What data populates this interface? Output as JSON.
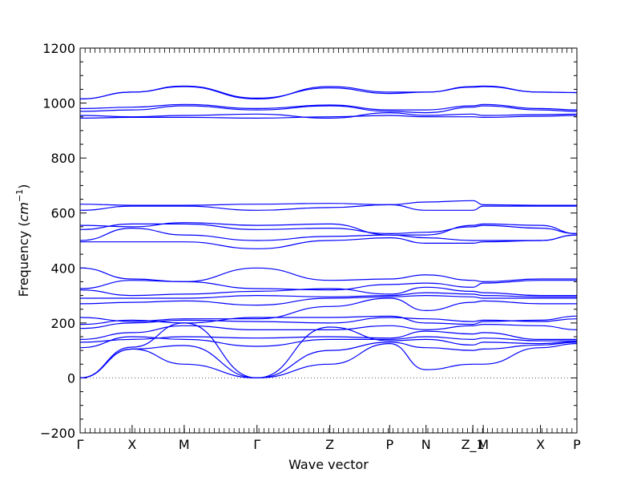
{
  "chart_data": {
    "type": "line",
    "xlabel": "Wave vector",
    "ylabel_text": "Frequency (",
    "ylabel_math": "cm",
    "ylabel_exp": "−1",
    "ylabel_close": ")",
    "ylim": [
      -200,
      1200
    ],
    "yticks": [
      -200,
      0,
      200,
      400,
      600,
      800,
      1000,
      1200
    ],
    "xlim": [
      0,
      9.55
    ],
    "zero_line": {
      "y": 0,
      "style": "dotted"
    },
    "high_symmetry_points": [
      {
        "label": "Γ",
        "x": 0
      },
      {
        "label": "X",
        "x": 1.0
      },
      {
        "label": "M",
        "x": 2.0
      },
      {
        "label": "Γ",
        "x": 3.4
      },
      {
        "label": "Z",
        "x": 4.8
      },
      {
        "label": "P",
        "x": 5.95
      },
      {
        "label": "N",
        "x": 6.65
      },
      {
        "label": "Z_1",
        "x": 7.55
      },
      {
        "label": "M",
        "x": 7.75
      },
      {
        "label": "X",
        "x": 8.85
      },
      {
        "label": "P",
        "x": 9.55
      }
    ],
    "line_color": "#0000ff",
    "series": [
      {
        "x": [
          0,
          1,
          2,
          3.4,
          4.8,
          5.95,
          6.65,
          7.55,
          7.75,
          8.85,
          9.55
        ],
        "y": [
          0,
          105,
          50,
          0,
          50,
          125,
          30,
          50,
          50,
          110,
          125
        ]
      },
      {
        "x": [
          0,
          1,
          2,
          3.4,
          4.8,
          5.95,
          6.65,
          7.55,
          7.75,
          8.85,
          9.55
        ],
        "y": [
          0,
          105,
          118,
          0,
          100,
          130,
          110,
          100,
          105,
          120,
          130
        ]
      },
      {
        "x": [
          0,
          1,
          2,
          3.4,
          4.8,
          5.95,
          6.65,
          7.55,
          7.75,
          8.85,
          9.55
        ],
        "y": [
          0,
          112,
          200,
          0,
          185,
          135,
          140,
          120,
          130,
          125,
          132
        ]
      },
      {
        "x": [
          0,
          1,
          2,
          3.4,
          4.8,
          5.95,
          6.65,
          7.55,
          7.75,
          8.85,
          9.55
        ],
        "y": [
          110,
          150,
          140,
          115,
          140,
          140,
          150,
          140,
          145,
          135,
          135
        ]
      },
      {
        "x": [
          0,
          1,
          2,
          3.4,
          4.8,
          5.95,
          6.65,
          7.55,
          7.75,
          8.85,
          9.55
        ],
        "y": [
          130,
          140,
          150,
          145,
          150,
          145,
          170,
          160,
          165,
          140,
          140
        ]
      },
      {
        "x": [
          0,
          1,
          2,
          3.4,
          4.8,
          5.95,
          6.65,
          7.55,
          7.75,
          8.85,
          9.55
        ],
        "y": [
          140,
          165,
          190,
          175,
          175,
          190,
          175,
          190,
          195,
          190,
          175
        ]
      },
      {
        "x": [
          0,
          1,
          2,
          3.4,
          4.8,
          5.95,
          6.65,
          7.55,
          7.75,
          8.85,
          9.55
        ],
        "y": [
          180,
          200,
          210,
          205,
          200,
          220,
          215,
          205,
          210,
          205,
          215
        ]
      },
      {
        "x": [
          0,
          1,
          2,
          3.4,
          4.8,
          5.95,
          6.65,
          7.55,
          7.75,
          8.85,
          9.55
        ],
        "y": [
          195,
          210,
          200,
          220,
          220,
          225,
          200,
          195,
          205,
          210,
          225
        ]
      },
      {
        "x": [
          0,
          1,
          2,
          3.4,
          4.8,
          5.95,
          6.65,
          7.55,
          7.75,
          8.85,
          9.55
        ],
        "y": [
          220,
          205,
          215,
          215,
          260,
          290,
          245,
          275,
          280,
          270,
          270
        ]
      },
      {
        "x": [
          0,
          1,
          2,
          3.4,
          4.8,
          5.95,
          6.65,
          7.55,
          7.75,
          8.85,
          9.55
        ],
        "y": [
          270,
          275,
          280,
          265,
          290,
          295,
          300,
          295,
          290,
          290,
          290
        ]
      },
      {
        "x": [
          0,
          1,
          2,
          3.4,
          4.8,
          5.95,
          6.65,
          7.55,
          7.75,
          8.85,
          9.55
        ],
        "y": [
          290,
          290,
          290,
          300,
          295,
          300,
          310,
          305,
          300,
          295,
          295
        ]
      },
      {
        "x": [
          0,
          1,
          2,
          3.4,
          4.8,
          5.95,
          6.65,
          7.55,
          7.75,
          8.85,
          9.55
        ],
        "y": [
          320,
          300,
          305,
          315,
          325,
          305,
          330,
          315,
          310,
          300,
          300
        ]
      },
      {
        "x": [
          0,
          1,
          2,
          3.4,
          4.8,
          5.95,
          6.65,
          7.55,
          7.75,
          8.85,
          9.55
        ],
        "y": [
          325,
          355,
          350,
          325,
          320,
          340,
          345,
          330,
          345,
          355,
          355
        ]
      },
      {
        "x": [
          0,
          1,
          2,
          3.4,
          4.8,
          5.95,
          6.65,
          7.55,
          7.75,
          8.85,
          9.55
        ],
        "y": [
          400,
          360,
          350,
          400,
          355,
          360,
          375,
          355,
          350,
          360,
          360
        ]
      },
      {
        "x": [
          0,
          1,
          2,
          3.4,
          4.8,
          5.95,
          6.65,
          7.55,
          7.75,
          8.85,
          9.55
        ],
        "y": [
          495,
          495,
          495,
          470,
          500,
          510,
          490,
          490,
          495,
          500,
          520
        ]
      },
      {
        "x": [
          0,
          1,
          2,
          3.4,
          4.8,
          5.95,
          6.65,
          7.55,
          7.75,
          8.85,
          9.55
        ],
        "y": [
          500,
          545,
          520,
          500,
          515,
          520,
          510,
          500,
          500,
          500,
          520
        ]
      },
      {
        "x": [
          0,
          1,
          2,
          3.4,
          4.8,
          5.95,
          6.65,
          7.55,
          7.75,
          8.85,
          9.55
        ],
        "y": [
          540,
          560,
          560,
          540,
          545,
          525,
          530,
          550,
          555,
          545,
          525
        ]
      },
      {
        "x": [
          0,
          1,
          2,
          3.4,
          4.8,
          5.95,
          6.65,
          7.55,
          7.75,
          8.85,
          9.55
        ],
        "y": [
          555,
          550,
          565,
          555,
          560,
          520,
          520,
          555,
          560,
          555,
          525
        ]
      },
      {
        "x": [
          0,
          1,
          2,
          3.4,
          4.8,
          5.95,
          6.65,
          7.55,
          7.75,
          8.85,
          9.55
        ],
        "y": [
          610,
          625,
          625,
          610,
          620,
          630,
          610,
          610,
          625,
          625,
          625
        ]
      },
      {
        "x": [
          0,
          1,
          2,
          3.4,
          4.8,
          5.95,
          6.65,
          7.55,
          7.75,
          8.85,
          9.55
        ],
        "y": [
          632,
          628,
          628,
          632,
          635,
          630,
          640,
          645,
          630,
          628,
          628
        ]
      },
      {
        "x": [
          0,
          1,
          2,
          3.4,
          4.8,
          5.95,
          6.65,
          7.55,
          7.75,
          8.85,
          9.55
        ],
        "y": [
          945,
          948,
          948,
          945,
          950,
          955,
          950,
          950,
          948,
          952,
          955
        ]
      },
      {
        "x": [
          0,
          1,
          2,
          3.4,
          4.8,
          5.95,
          6.65,
          7.55,
          7.75,
          8.85,
          9.55
        ],
        "y": [
          955,
          950,
          955,
          960,
          945,
          965,
          955,
          960,
          955,
          958,
          960
        ]
      },
      {
        "x": [
          0,
          1,
          2,
          3.4,
          4.8,
          5.95,
          6.65,
          7.55,
          7.75,
          8.85,
          9.55
        ],
        "y": [
          970,
          975,
          990,
          975,
          990,
          970,
          965,
          985,
          990,
          975,
          970
        ]
      },
      {
        "x": [
          0,
          1,
          2,
          3.4,
          4.8,
          5.95,
          6.65,
          7.55,
          7.75,
          8.85,
          9.55
        ],
        "y": [
          980,
          985,
          995,
          980,
          993,
          975,
          975,
          990,
          995,
          980,
          975
        ]
      },
      {
        "x": [
          0,
          1,
          2,
          3.4,
          4.8,
          5.95,
          6.65,
          7.55,
          7.75,
          8.85,
          9.55
        ],
        "y": [
          1015,
          1040,
          1060,
          1015,
          1060,
          1040,
          1040,
          1060,
          1062,
          1040,
          1038
        ]
      },
      {
        "x": [
          0,
          1,
          2,
          3.4,
          4.8,
          5.95,
          6.65,
          7.55,
          7.75,
          8.85,
          9.55
        ],
        "y": [
          1015,
          1040,
          1062,
          1018,
          1055,
          1035,
          1040,
          1058,
          1060,
          1040,
          1038
        ]
      }
    ]
  }
}
